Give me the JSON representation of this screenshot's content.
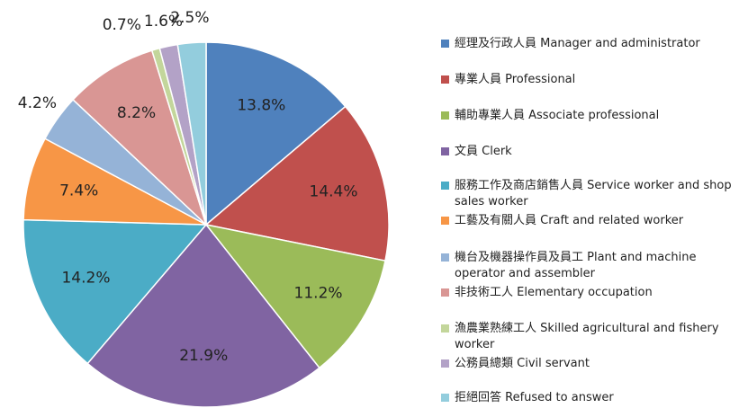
{
  "chart_data": {
    "type": "pie",
    "categories": [
      "經理及行政人員 Manager and administrator",
      "專業人員 Professional",
      "輔助專業人員 Associate professional",
      "文員 Clerk",
      "服務工作及商店銷售人員 Service worker and shop sales worker",
      "工藝及有關人員 Craft and related worker",
      "機台及機器操作員及員工 Plant and machine operator and assembler",
      "非技術工人 Elementary occupation",
      "漁農業熟練工人 Skilled agricultural and fishery worker",
      "公務員總類 Civil servant",
      "拒絕回答 Refused to answer"
    ],
    "values": [
      13.8,
      14.4,
      11.2,
      21.9,
      14.2,
      7.4,
      4.2,
      8.2,
      0.7,
      1.6,
      2.5
    ],
    "value_labels": [
      "13.8%",
      "14.4%",
      "11.2%",
      "21.9%",
      "14.2%",
      "7.4%",
      "4.2%",
      "8.2%",
      "0.7%",
      "1.6%",
      "2.5%"
    ],
    "colors": [
      "#4f81bd",
      "#c0504d",
      "#9bbb59",
      "#8064a2",
      "#4bacc6",
      "#f79646",
      "#95b3d7",
      "#d99694",
      "#c3d69b",
      "#b3a2c7",
      "#93cddd"
    ],
    "legend": "right"
  }
}
